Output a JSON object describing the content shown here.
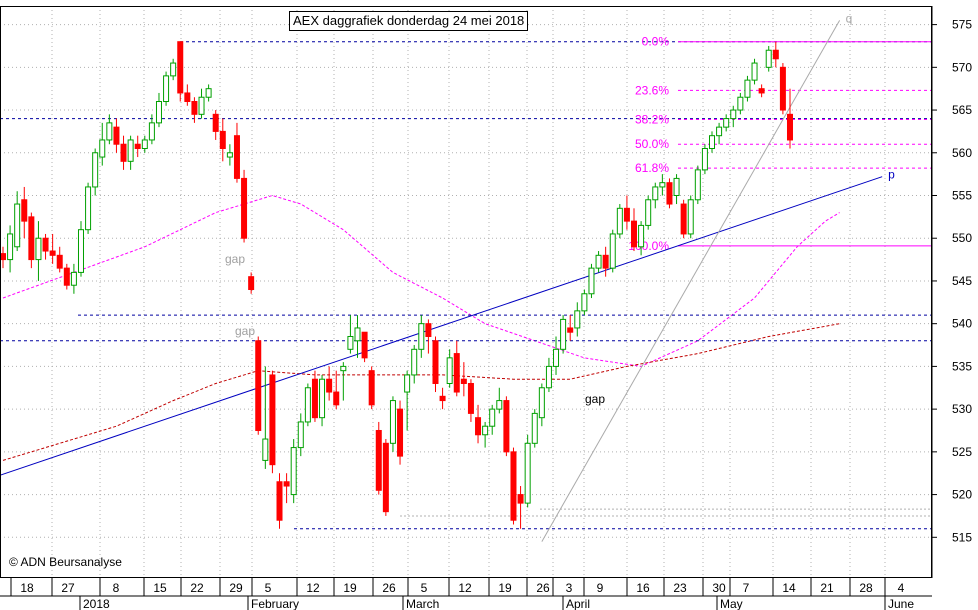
{
  "chart_data": {
    "type": "candlestick",
    "title": "AEX daggrafiek donderdag 24 mei 2018",
    "credit": "© ADN Beursanalyse",
    "ylim": [
      512,
      578
    ],
    "y_ticks": [
      515,
      520,
      525,
      530,
      535,
      540,
      545,
      550,
      555,
      560,
      565,
      570,
      575
    ],
    "y_axis_side": "right",
    "grid": true,
    "x_day_labels": [
      "18",
      "27",
      "8",
      "15",
      "22",
      "29",
      "5",
      "12",
      "19",
      "26",
      "5",
      "12",
      "19",
      "26",
      "3",
      "9",
      "16",
      "23",
      "30",
      "7",
      "14",
      "21",
      "28",
      "4"
    ],
    "x_month_labels": [
      "2018",
      "February",
      "March",
      "April",
      "May",
      "June"
    ],
    "candles_ohlc": [
      [
        548.2,
        549.0,
        546.5,
        547.5
      ],
      [
        547.5,
        551.5,
        546.0,
        550.5
      ],
      [
        549.0,
        555.5,
        548.5,
        554.0
      ],
      [
        554.5,
        556.0,
        550.0,
        552.0
      ],
      [
        552.5,
        553.0,
        546.5,
        547.5
      ],
      [
        547.5,
        552.0,
        545.0,
        550.0
      ],
      [
        550.0,
        550.5,
        547.5,
        548.5
      ],
      [
        548.5,
        550.5,
        547.0,
        548.0
      ],
      [
        548.0,
        549.0,
        546.0,
        546.5
      ],
      [
        546.5,
        547.0,
        544.0,
        544.5
      ],
      [
        544.5,
        547.0,
        543.5,
        546.0
      ],
      [
        546.0,
        552.0,
        545.5,
        551.0
      ],
      [
        551.0,
        556.5,
        550.5,
        556.0
      ],
      [
        556.0,
        560.5,
        555.0,
        560.0
      ],
      [
        559.5,
        563.5,
        558.5,
        561.5
      ],
      [
        561.5,
        564.5,
        561.0,
        563.5
      ],
      [
        563.0,
        564.0,
        560.0,
        561.0
      ],
      [
        561.0,
        562.0,
        558.0,
        559.0
      ],
      [
        559.0,
        562.0,
        558.0,
        561.5
      ],
      [
        561.0,
        562.0,
        559.5,
        560.5
      ],
      [
        560.5,
        562.0,
        560.0,
        561.5
      ],
      [
        561.5,
        564.5,
        561.0,
        563.5
      ],
      [
        563.5,
        567.0,
        563.0,
        566.0
      ],
      [
        566.0,
        569.5,
        565.5,
        569.0
      ],
      [
        569.0,
        571.0,
        568.5,
        570.5
      ],
      [
        573.0,
        573.0,
        566.0,
        567.0
      ],
      [
        567.0,
        568.0,
        565.5,
        566.0
      ],
      [
        566.0,
        566.5,
        563.5,
        564.5
      ],
      [
        564.5,
        567.5,
        564.0,
        566.5
      ],
      [
        566.5,
        568.0,
        566.0,
        567.5
      ],
      [
        564.5,
        565.0,
        561.5,
        562.5
      ],
      [
        562.5,
        564.0,
        559.0,
        560.5
      ],
      [
        559.5,
        561.0,
        558.5,
        560.0
      ],
      [
        562.0,
        563.5,
        556.5,
        557.0
      ],
      [
        557.0,
        558.0,
        549.5,
        550.0
      ],
      [
        545.5,
        546.0,
        543.5,
        544.0
      ],
      [
        538.0,
        538.5,
        527.0,
        527.5
      ],
      [
        524.0,
        535.0,
        523.0,
        526.5
      ],
      [
        534.0,
        534.5,
        522.5,
        523.5
      ],
      [
        521.5,
        522.5,
        516.0,
        517.0
      ],
      [
        521.5,
        522.5,
        519.0,
        521.0
      ],
      [
        520.0,
        526.5,
        519.0,
        525.5
      ],
      [
        525.5,
        529.5,
        524.5,
        528.5
      ],
      [
        528.5,
        533.0,
        528.0,
        532.5
      ],
      [
        533.5,
        534.5,
        528.5,
        529.0
      ],
      [
        529.0,
        534.0,
        528.0,
        533.5
      ],
      [
        533.5,
        535.0,
        531.0,
        532.0
      ],
      [
        532.0,
        534.5,
        530.0,
        530.5
      ],
      [
        534.5,
        535.5,
        531.0,
        535.0
      ],
      [
        537.0,
        541.0,
        536.5,
        538.5
      ],
      [
        538.0,
        541.0,
        536.0,
        539.5
      ],
      [
        539.0,
        538.5,
        535.5,
        536.0
      ],
      [
        534.5,
        535.0,
        530.0,
        530.5
      ],
      [
        527.5,
        528.5,
        520.0,
        520.5
      ],
      [
        526.0,
        526.5,
        517.5,
        518.0
      ],
      [
        526.0,
        531.5,
        525.0,
        531.0
      ],
      [
        530.0,
        531.0,
        523.5,
        524.5
      ],
      [
        532.0,
        534.5,
        527.5,
        534.0
      ],
      [
        534.0,
        537.5,
        533.0,
        537.0
      ],
      [
        537.0,
        541.0,
        536.0,
        540.0
      ],
      [
        540.0,
        540.5,
        536.5,
        538.5
      ],
      [
        538.0,
        538.5,
        532.0,
        533.0
      ],
      [
        531.5,
        532.5,
        530.0,
        531.0
      ],
      [
        533.0,
        537.0,
        532.5,
        536.0
      ],
      [
        536.5,
        538.0,
        531.5,
        532.0
      ],
      [
        533.5,
        535.5,
        531.5,
        533.0
      ],
      [
        533.0,
        533.5,
        528.5,
        529.5
      ],
      [
        529.0,
        530.5,
        526.0,
        527.0
      ],
      [
        527.0,
        528.5,
        525.5,
        528.0
      ],
      [
        528.0,
        530.5,
        527.0,
        530.0
      ],
      [
        530.0,
        532.5,
        529.5,
        531.0
      ],
      [
        531.0,
        531.5,
        524.5,
        525.0
      ],
      [
        525.0,
        525.5,
        516.5,
        517.0
      ],
      [
        520.0,
        521.0,
        516.0,
        519.0
      ],
      [
        519.0,
        527.0,
        518.5,
        526.0
      ],
      [
        526.0,
        530.0,
        525.5,
        529.5
      ],
      [
        529.0,
        533.0,
        528.0,
        532.5
      ],
      [
        532.5,
        536.0,
        532.0,
        535.0
      ],
      [
        535.0,
        538.5,
        534.0,
        537.0
      ],
      [
        537.0,
        541.0,
        536.5,
        540.5
      ],
      [
        539.5,
        541.0,
        538.0,
        539.0
      ],
      [
        539.5,
        542.5,
        538.5,
        541.5
      ],
      [
        541.5,
        544.0,
        541.0,
        543.5
      ],
      [
        543.5,
        547.0,
        543.0,
        546.5
      ],
      [
        546.5,
        548.5,
        546.0,
        548.0
      ],
      [
        548.0,
        549.0,
        545.5,
        546.5
      ],
      [
        546.5,
        551.0,
        546.0,
        550.5
      ],
      [
        550.5,
        554.0,
        550.0,
        553.5
      ],
      [
        553.5,
        555.0,
        551.0,
        552.0
      ],
      [
        552.0,
        553.5,
        548.5,
        549.0
      ],
      [
        549.0,
        552.0,
        548.0,
        551.5
      ],
      [
        551.5,
        555.0,
        551.0,
        554.5
      ],
      [
        554.5,
        556.5,
        553.5,
        556.0
      ],
      [
        556.0,
        557.5,
        555.0,
        556.5
      ],
      [
        556.5,
        557.0,
        553.5,
        554.0
      ],
      [
        555.0,
        557.5,
        554.0,
        557.0
      ],
      [
        554.0,
        554.5,
        550.0,
        550.5
      ],
      [
        550.5,
        555.0,
        550.0,
        554.5
      ],
      [
        554.5,
        558.5,
        554.0,
        558.0
      ],
      [
        558.0,
        561.0,
        557.5,
        560.5
      ],
      [
        560.5,
        562.5,
        560.0,
        562.0
      ],
      [
        562.0,
        563.5,
        561.0,
        563.0
      ],
      [
        563.0,
        564.5,
        562.5,
        564.0
      ],
      [
        564.0,
        565.5,
        563.0,
        565.0
      ],
      [
        565.0,
        567.0,
        564.5,
        566.5
      ],
      [
        566.5,
        569.0,
        566.0,
        568.5
      ],
      [
        568.5,
        571.0,
        568.0,
        570.5
      ],
      [
        567.5,
        568.0,
        566.5,
        567.0
      ],
      [
        570.0,
        572.5,
        569.5,
        572.0
      ],
      [
        572.0,
        573.0,
        570.0,
        571.0
      ],
      [
        570.0,
        570.5,
        564.5,
        565.0
      ],
      [
        564.5,
        567.5,
        560.5,
        561.5
      ]
    ],
    "moving_averages": [
      {
        "style": "dashed",
        "color": "#ff00ff",
        "points": [
          [
            0,
            543
          ],
          [
            10,
            546
          ],
          [
            20,
            549
          ],
          [
            30,
            553
          ],
          [
            38,
            555
          ],
          [
            42,
            554
          ],
          [
            48,
            551
          ],
          [
            55,
            546
          ],
          [
            62,
            543
          ],
          [
            68,
            540
          ],
          [
            75,
            538
          ],
          [
            82,
            536
          ],
          [
            90,
            535
          ],
          [
            98,
            538
          ],
          [
            106,
            543
          ],
          [
            112,
            549
          ],
          [
            116,
            552
          ],
          [
            118,
            553
          ]
        ]
      },
      {
        "style": "dashed",
        "color": "#c00000",
        "points": [
          [
            0,
            524
          ],
          [
            8,
            526
          ],
          [
            16,
            528
          ],
          [
            24,
            531
          ],
          [
            30,
            533
          ],
          [
            36,
            534.5
          ],
          [
            44,
            534
          ],
          [
            52,
            534
          ],
          [
            62,
            534
          ],
          [
            72,
            533.5
          ],
          [
            80,
            533.5
          ],
          [
            88,
            535
          ],
          [
            98,
            536.5
          ],
          [
            108,
            538.5
          ],
          [
            118,
            540
          ]
        ]
      }
    ],
    "support_resistance": [
      573.0,
      564.0,
      541.0,
      538.0,
      516.0
    ],
    "fibonacci": {
      "levels": [
        {
          "label": "0.0%",
          "value": 573.0
        },
        {
          "label": "23.6%",
          "value": 567.3
        },
        {
          "label": "38.2%",
          "value": 563.9
        },
        {
          "label": "50.0%",
          "value": 561.0
        },
        {
          "label": "61.8%",
          "value": 558.2
        },
        {
          "label": "100.0%",
          "value": 549.1
        }
      ]
    },
    "trendlines": [
      {
        "color": "#0000c0",
        "from": [
          -1,
          522.1
        ],
        "to": [
          124,
          557.2
        ],
        "label": "p"
      },
      {
        "color": "#aaaaaa",
        "from": [
          76,
          514.5
        ],
        "to": [
          118,
          575.5
        ],
        "label": "q"
      }
    ],
    "annotations": [
      "gap",
      "gap",
      "gap"
    ],
    "colors": {
      "up": "#00a000",
      "down": "#ff0000",
      "fib": "#ff00ff",
      "support": "#0000a0",
      "trend": "#0000c0"
    }
  }
}
